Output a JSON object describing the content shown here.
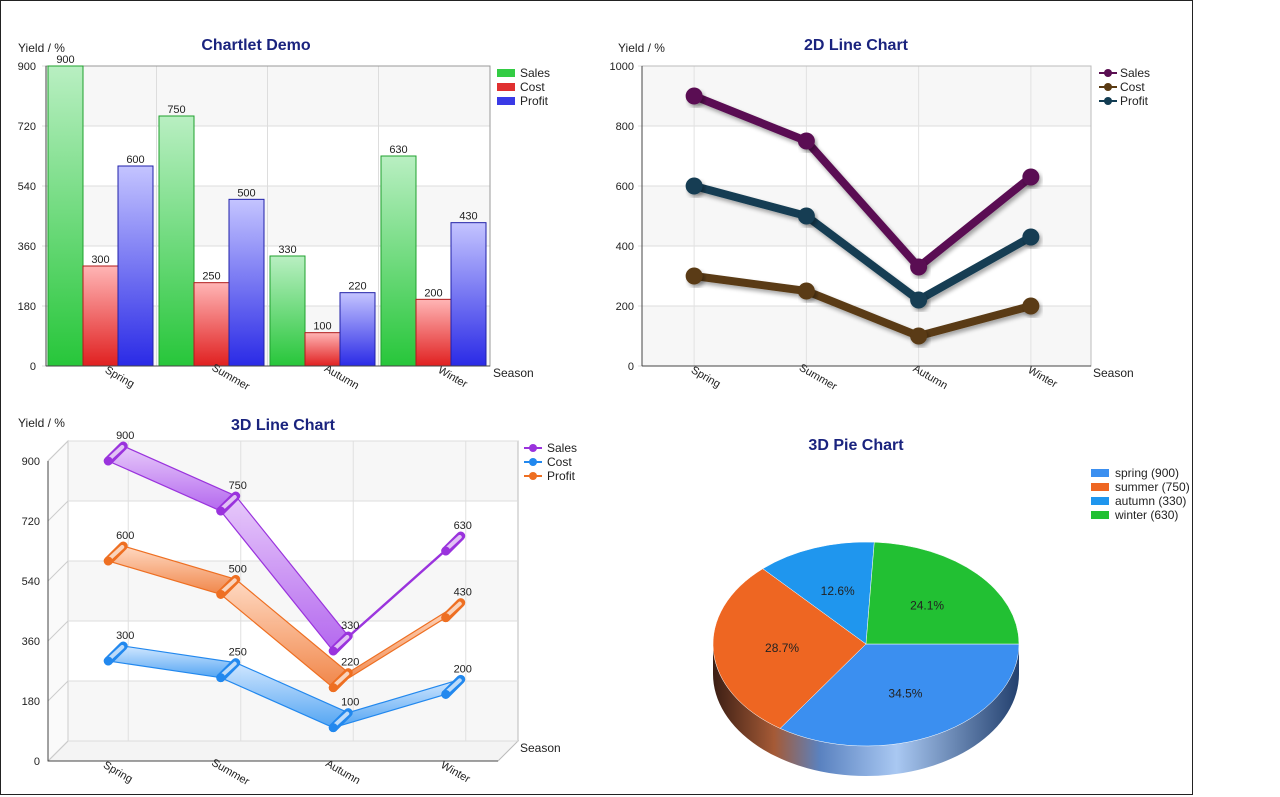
{
  "chart_data": [
    {
      "type": "bar",
      "title": "Chartlet Demo",
      "ylabel": "Yield / %",
      "xlabel": "Season",
      "categories": [
        "Spring",
        "Summer",
        "Autumn",
        "Winter"
      ],
      "yticks": [
        0,
        180,
        360,
        540,
        720,
        900
      ],
      "ylim": [
        0,
        900
      ],
      "series": [
        {
          "name": "Sales",
          "values": [
            900,
            750,
            330,
            630
          ],
          "color": "#33cc44"
        },
        {
          "name": "Cost",
          "values": [
            300,
            250,
            100,
            200
          ],
          "color": "#e03030"
        },
        {
          "name": "Profit",
          "values": [
            600,
            500,
            220,
            430
          ],
          "color": "#3a3ae6"
        }
      ],
      "legend": "right",
      "grid": true
    },
    {
      "type": "line",
      "title": "2D Line Chart",
      "ylabel": "Yield / %",
      "xlabel": "Season",
      "categories": [
        "Spring",
        "Summer",
        "Autumn",
        "Winter"
      ],
      "yticks": [
        0,
        200,
        400,
        600,
        800,
        1000
      ],
      "ylim": [
        0,
        1000
      ],
      "series": [
        {
          "name": "Sales",
          "values": [
            900,
            750,
            330,
            630
          ],
          "color": "#5a0f52"
        },
        {
          "name": "Cost",
          "values": [
            300,
            250,
            100,
            200
          ],
          "color": "#5a3a12"
        },
        {
          "name": "Profit",
          "values": [
            600,
            500,
            220,
            430
          ],
          "color": "#123c52"
        }
      ],
      "legend": "right",
      "grid": true
    },
    {
      "type": "line",
      "title": "3D Line Chart",
      "ylabel": "Yield / %",
      "xlabel": "Season",
      "categories": [
        "Spring",
        "Summer",
        "Autumn",
        "Winter"
      ],
      "yticks": [
        0,
        180,
        360,
        540,
        720,
        900
      ],
      "ylim": [
        0,
        900
      ],
      "series": [
        {
          "name": "Sales",
          "values": [
            900,
            750,
            330,
            630
          ],
          "color": "#9a33dd"
        },
        {
          "name": "Cost",
          "values": [
            300,
            250,
            100,
            200
          ],
          "color": "#2288ee"
        },
        {
          "name": "Profit",
          "values": [
            600,
            500,
            220,
            430
          ],
          "color": "#ee6f22"
        }
      ],
      "legend": "right",
      "grid": true
    },
    {
      "type": "pie",
      "title": "3D Pie Chart",
      "slices": [
        {
          "label": "spring (900)",
          "value": 900,
          "pct": "34.5%",
          "color": "#3b8ff0"
        },
        {
          "label": "summer (750)",
          "value": 750,
          "pct": "28.7%",
          "color": "#ee6622"
        },
        {
          "label": "autumn (330)",
          "value": 330,
          "pct": "12.6%",
          "color": "#1f96ee"
        },
        {
          "label": "winter (630)",
          "value": 630,
          "pct": "24.1%",
          "color": "#22c033"
        }
      ],
      "legend": "top-right"
    }
  ]
}
